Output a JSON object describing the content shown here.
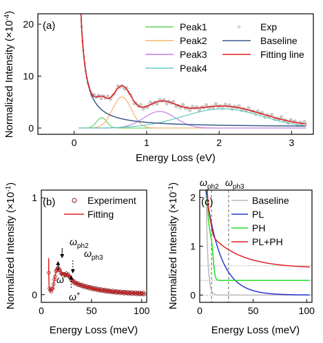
{
  "chart_data": [
    {
      "type": "line",
      "panel": "(a)",
      "xlabel": "Energy Loss (eV)",
      "ylabel": "Normalized Intensity (×10",
      "ylabel_exp": "-4",
      "ylabel_close": ")",
      "xlim": [
        -0.5,
        3.3
      ],
      "ylim": [
        -1.2,
        22
      ],
      "xticks": [
        0,
        1,
        2,
        3
      ],
      "yticks": [
        0,
        10,
        20
      ],
      "legend_placement": "top-right",
      "series": [
        {
          "name": "Peak1",
          "color": "#5fd35f",
          "kind": "gauss",
          "center": 0.38,
          "amp": 2.0,
          "sigma": 0.07
        },
        {
          "name": "Peak2",
          "color": "#f5b472",
          "kind": "gauss",
          "center": 0.66,
          "amp": 6.0,
          "sigma": 0.13
        },
        {
          "name": "Peak3",
          "color": "#c57ae8",
          "kind": "gauss",
          "center": 1.18,
          "amp": 3.2,
          "sigma": 0.22
        },
        {
          "name": "Peak4",
          "color": "#62cbc0",
          "kind": "gauss",
          "center": 2.05,
          "amp": 3.7,
          "sigma": 0.55
        },
        {
          "name": "Exp",
          "color": "#a9a9a9",
          "kind": "scatter"
        },
        {
          "name": "Baseline",
          "color": "#3a5a8c",
          "kind": "baseline"
        },
        {
          "name": "Fitting line",
          "color": "#e02020",
          "kind": "fit"
        }
      ]
    },
    {
      "type": "line",
      "panel": "(b)",
      "xlabel": "Energy Loss (meV)",
      "ylabel": "Normalized Intensity (×10",
      "ylabel_exp": "-1",
      "ylabel_close": ")",
      "xlim": [
        0,
        105
      ],
      "ylim": [
        -0.08,
        1.08
      ],
      "xticks": [
        0,
        50,
        100
      ],
      "yticks": [
        0,
        1
      ],
      "legend_placement": "top-right",
      "series": [
        {
          "name": "Experiment",
          "color": "#8b1a1a",
          "kind": "scatter"
        },
        {
          "name": "Fitting",
          "color": "#e02020",
          "kind": "fit"
        }
      ],
      "annotations": [
        {
          "text": "ω",
          "sub": "ph2",
          "x": 18,
          "y": 0.38,
          "arrow": "down"
        },
        {
          "text": "ω",
          "sub": "ph3",
          "x": 28,
          "y": 0.27,
          "arrow": "down"
        },
        {
          "text": "ω",
          "sup": "-",
          "x": 16,
          "y": 0.35,
          "arrow": "up"
        },
        {
          "text": "ω",
          "sup": "+",
          "x": 27,
          "y": 0.25,
          "arrow": "up"
        }
      ]
    },
    {
      "type": "line",
      "panel": "(c)",
      "xlabel": "Energy Loss (meV)",
      "ylabel": "Normalized Intensity (×10",
      "ylabel_exp": "-1",
      "ylabel_close": ")",
      "xlim": [
        0,
        105
      ],
      "ylim": [
        -0.15,
        2.15
      ],
      "xticks": [
        0,
        50,
        100
      ],
      "yticks": [
        0,
        1,
        2
      ],
      "legend_placement": "top-right",
      "top_labels": [
        {
          "text": "ω",
          "sub": "ph2",
          "x": 11
        },
        {
          "text": "ω",
          "sub": "ph3",
          "x": 27
        }
      ],
      "series": [
        {
          "name": "Baseline",
          "color": "#b9b9b9",
          "offset": 0
        },
        {
          "name": "PL",
          "color": "#2a33d6",
          "offset": 0
        },
        {
          "name": "PH",
          "color": "#22dd22",
          "offset": 0.3
        },
        {
          "name": "PL+PH",
          "color": "#e02020",
          "offset": 0.6
        }
      ]
    }
  ]
}
